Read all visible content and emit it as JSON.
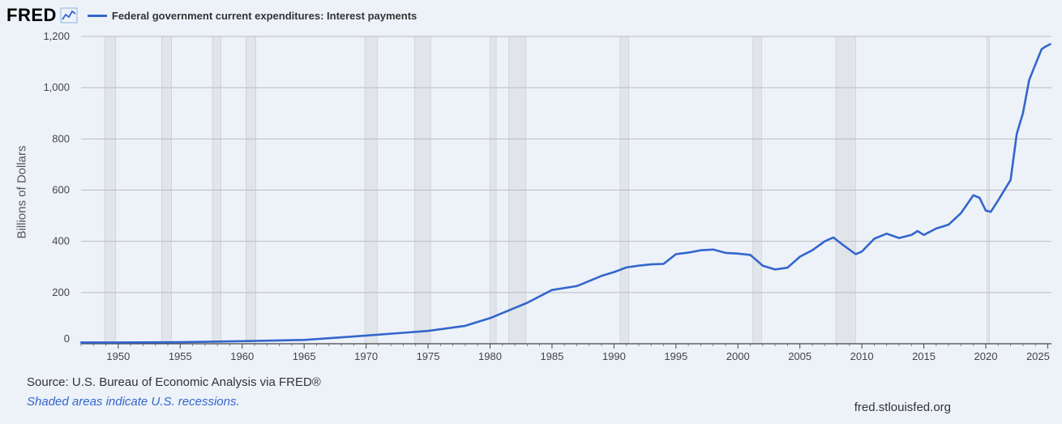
{
  "header": {
    "logo": "FRED",
    "logo_icon": "line-chart-icon",
    "series_label": "Federal government current expenditures: Interest payments"
  },
  "footer": {
    "source": "Source: U.S. Bureau of Economic Analysis via FRED®",
    "note": "Shaded areas indicate U.S. recessions.",
    "site": "fred.stlouisfed.org"
  },
  "colors": {
    "line": "#3366cc",
    "recession": "#e1e5ea",
    "background": "#edf2f9",
    "grid": "#bbbbbb"
  },
  "chart_data": {
    "type": "line",
    "title": "",
    "ylabel": "Billions of Dollars",
    "xlabel": "",
    "xlim": [
      1947,
      2025.3
    ],
    "ylim": [
      0,
      1200
    ],
    "x_ticks": [
      1950,
      1955,
      1960,
      1965,
      1970,
      1975,
      1980,
      1985,
      1990,
      1995,
      2000,
      2005,
      2010,
      2015,
      2020,
      2025
    ],
    "y_ticks": [
      0,
      200,
      400,
      600,
      800,
      1000,
      1200
    ],
    "y_tick_labels": [
      "0",
      "200",
      "400",
      "600",
      "800",
      "1,000",
      "1,200"
    ],
    "grid": true,
    "recessions": [
      [
        1948.9,
        1949.8
      ],
      [
        1953.5,
        1954.3
      ],
      [
        1957.6,
        1958.3
      ],
      [
        1960.3,
        1961.1
      ],
      [
        1969.9,
        1970.9
      ],
      [
        1973.9,
        1975.2
      ],
      [
        1980.0,
        1980.5
      ],
      [
        1981.5,
        1982.9
      ],
      [
        1990.5,
        1991.2
      ],
      [
        2001.2,
        2001.9
      ],
      [
        2007.9,
        2009.5
      ],
      [
        2020.1,
        2020.3
      ]
    ],
    "series": [
      {
        "name": "Federal government current expenditures: Interest payments",
        "x": [
          1947,
          1950,
          1955,
          1960,
          1965,
          1970,
          1975,
          1978,
          1980,
          1982,
          1983,
          1985,
          1987,
          1989,
          1990,
          1991,
          1992,
          1993,
          1994,
          1995,
          1996,
          1997,
          1998,
          1999,
          2000,
          2001,
          2002,
          2003,
          2004,
          2005,
          2006,
          2007,
          2007.7,
          2008.5,
          2009.5,
          2010,
          2011,
          2012,
          2013,
          2014,
          2014.5,
          2015,
          2016,
          2017,
          2018,
          2019,
          2019.5,
          2020,
          2020.4,
          2021,
          2022,
          2022.5,
          2023,
          2023.5,
          2024,
          2024.5,
          2024.8,
          2025.2
        ],
        "y": [
          5,
          5,
          6,
          10,
          15,
          32,
          50,
          70,
          100,
          140,
          160,
          210,
          225,
          265,
          280,
          298,
          305,
          310,
          312,
          350,
          356,
          365,
          368,
          355,
          352,
          347,
          305,
          290,
          297,
          340,
          365,
          400,
          415,
          385,
          350,
          360,
          410,
          430,
          413,
          425,
          440,
          425,
          450,
          465,
          510,
          580,
          570,
          520,
          515,
          560,
          640,
          820,
          900,
          1030,
          1090,
          1150,
          1160,
          1170
        ]
      }
    ]
  }
}
